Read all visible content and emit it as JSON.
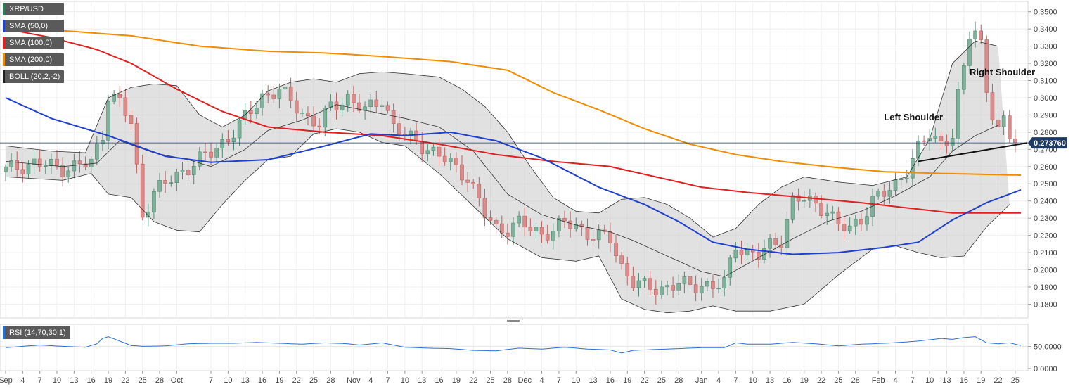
{
  "chart_data": {
    "type": "candlestick",
    "symbol": "XRP/USD",
    "indicators": [
      {
        "key": "pair",
        "label": "XRP/USD",
        "color": "#2e7d5b"
      },
      {
        "key": "sma50",
        "label": "SMA (50,0)",
        "color": "#1f3fcf"
      },
      {
        "key": "sma100",
        "label": "SMA (100,0)",
        "color": "#e02020"
      },
      {
        "key": "sma200",
        "label": "SMA (200,0)",
        "color": "#f08c00"
      },
      {
        "key": "boll",
        "label": "BOLL (20,2,-2)",
        "color": "#222222"
      }
    ],
    "y_range": [
      0.172,
      0.356
    ],
    "y_ticks": [
      "0.1800",
      "0.1900",
      "0.2000",
      "0.2100",
      "0.2200",
      "0.2300",
      "0.2400",
      "0.2500",
      "0.2600",
      "0.2700",
      "0.2800",
      "0.2900",
      "0.3000",
      "0.3100",
      "0.3200",
      "0.3300",
      "0.3400",
      "0.3500"
    ],
    "current_price": "0.273760",
    "current_price_value": 0.27376,
    "x_ticks": [
      {
        "i": 0,
        "label": "Sep"
      },
      {
        "i": 3,
        "label": "4"
      },
      {
        "i": 6,
        "label": "7"
      },
      {
        "i": 9,
        "label": "10"
      },
      {
        "i": 12,
        "label": "13"
      },
      {
        "i": 15,
        "label": "16"
      },
      {
        "i": 18,
        "label": "19"
      },
      {
        "i": 21,
        "label": "22"
      },
      {
        "i": 24,
        "label": "25"
      },
      {
        "i": 27,
        "label": "28"
      },
      {
        "i": 30,
        "label": "Oct"
      },
      {
        "i": 36,
        "label": "7"
      },
      {
        "i": 39,
        "label": "10"
      },
      {
        "i": 42,
        "label": "13"
      },
      {
        "i": 45,
        "label": "16"
      },
      {
        "i": 48,
        "label": "19"
      },
      {
        "i": 51,
        "label": "22"
      },
      {
        "i": 54,
        "label": "25"
      },
      {
        "i": 57,
        "label": "28"
      },
      {
        "i": 61,
        "label": "Nov"
      },
      {
        "i": 64,
        "label": "4"
      },
      {
        "i": 67,
        "label": "7"
      },
      {
        "i": 70,
        "label": "10"
      },
      {
        "i": 73,
        "label": "13"
      },
      {
        "i": 76,
        "label": "16"
      },
      {
        "i": 79,
        "label": "19"
      },
      {
        "i": 82,
        "label": "22"
      },
      {
        "i": 85,
        "label": "25"
      },
      {
        "i": 88,
        "label": "28"
      },
      {
        "i": 91,
        "label": "Dec"
      },
      {
        "i": 94,
        "label": "4"
      },
      {
        "i": 97,
        "label": "7"
      },
      {
        "i": 100,
        "label": "10"
      },
      {
        "i": 103,
        "label": "13"
      },
      {
        "i": 106,
        "label": "16"
      },
      {
        "i": 109,
        "label": "19"
      },
      {
        "i": 112,
        "label": "22"
      },
      {
        "i": 115,
        "label": "25"
      },
      {
        "i": 118,
        "label": "28"
      },
      {
        "i": 122,
        "label": "Jan"
      },
      {
        "i": 125,
        "label": "4"
      },
      {
        "i": 128,
        "label": "7"
      },
      {
        "i": 131,
        "label": "10"
      },
      {
        "i": 134,
        "label": "13"
      },
      {
        "i": 137,
        "label": "16"
      },
      {
        "i": 140,
        "label": "19"
      },
      {
        "i": 143,
        "label": "22"
      },
      {
        "i": 146,
        "label": "25"
      },
      {
        "i": 149,
        "label": "28"
      },
      {
        "i": 153,
        "label": "Feb"
      },
      {
        "i": 156,
        "label": "4"
      },
      {
        "i": 159,
        "label": "7"
      },
      {
        "i": 162,
        "label": "10"
      },
      {
        "i": 165,
        "label": "13"
      },
      {
        "i": 168,
        "label": "16"
      },
      {
        "i": 171,
        "label": "19"
      },
      {
        "i": 174,
        "label": "22"
      },
      {
        "i": 177,
        "label": "25"
      }
    ],
    "close_keypoints": [
      [
        0,
        0.258
      ],
      [
        5,
        0.262
      ],
      [
        10,
        0.259
      ],
      [
        15,
        0.262
      ],
      [
        17,
        0.279
      ],
      [
        18,
        0.302
      ],
      [
        20,
        0.297
      ],
      [
        22,
        0.285
      ],
      [
        24,
        0.232
      ],
      [
        26,
        0.245
      ],
      [
        28,
        0.25
      ],
      [
        30,
        0.255
      ],
      [
        33,
        0.262
      ],
      [
        36,
        0.268
      ],
      [
        38,
        0.274
      ],
      [
        40,
        0.28
      ],
      [
        42,
        0.288
      ],
      [
        45,
        0.301
      ],
      [
        48,
        0.304
      ],
      [
        51,
        0.295
      ],
      [
        53,
        0.288
      ],
      [
        55,
        0.284
      ],
      [
        57,
        0.295
      ],
      [
        60,
        0.3
      ],
      [
        63,
        0.292
      ],
      [
        66,
        0.3
      ],
      [
        68,
        0.283
      ],
      [
        70,
        0.278
      ],
      [
        72,
        0.275
      ],
      [
        75,
        0.268
      ],
      [
        78,
        0.262
      ],
      [
        81,
        0.254
      ],
      [
        84,
        0.232
      ],
      [
        86,
        0.224
      ],
      [
        88,
        0.224
      ],
      [
        90,
        0.227
      ],
      [
        92,
        0.224
      ],
      [
        94,
        0.221
      ],
      [
        96,
        0.223
      ],
      [
        98,
        0.227
      ],
      [
        100,
        0.226
      ],
      [
        102,
        0.221
      ],
      [
        104,
        0.219
      ],
      [
        106,
        0.218
      ],
      [
        108,
        0.202
      ],
      [
        110,
        0.193
      ],
      [
        112,
        0.19
      ],
      [
        114,
        0.189
      ],
      [
        116,
        0.19
      ],
      [
        118,
        0.192
      ],
      [
        120,
        0.19
      ],
      [
        122,
        0.192
      ],
      [
        124,
        0.19
      ],
      [
        126,
        0.192
      ],
      [
        128,
        0.215
      ],
      [
        130,
        0.21
      ],
      [
        132,
        0.208
      ],
      [
        134,
        0.214
      ],
      [
        136,
        0.218
      ],
      [
        138,
        0.24
      ],
      [
        140,
        0.241
      ],
      [
        142,
        0.238
      ],
      [
        144,
        0.235
      ],
      [
        146,
        0.225
      ],
      [
        148,
        0.224
      ],
      [
        150,
        0.23
      ],
      [
        152,
        0.24
      ],
      [
        154,
        0.244
      ],
      [
        156,
        0.25
      ],
      [
        158,
        0.258
      ],
      [
        160,
        0.27
      ],
      [
        162,
        0.279
      ],
      [
        164,
        0.274
      ],
      [
        166,
        0.278
      ],
      [
        167,
        0.3
      ],
      [
        168,
        0.316
      ],
      [
        169,
        0.337
      ],
      [
        170,
        0.34
      ],
      [
        171,
        0.332
      ],
      [
        172,
        0.305
      ],
      [
        173,
        0.29
      ],
      [
        174,
        0.28
      ],
      [
        175,
        0.285
      ],
      [
        176,
        0.278
      ],
      [
        177,
        0.2738
      ]
    ],
    "sma50": [
      [
        0,
        0.3
      ],
      [
        8,
        0.288
      ],
      [
        18,
        0.278
      ],
      [
        28,
        0.266
      ],
      [
        36,
        0.2625
      ],
      [
        46,
        0.264
      ],
      [
        56,
        0.272
      ],
      [
        64,
        0.279
      ],
      [
        70,
        0.278
      ],
      [
        78,
        0.28
      ],
      [
        86,
        0.275
      ],
      [
        94,
        0.265
      ],
      [
        104,
        0.248
      ],
      [
        112,
        0.238
      ],
      [
        118,
        0.228
      ],
      [
        124,
        0.216
      ],
      [
        130,
        0.212
      ],
      [
        138,
        0.209
      ],
      [
        146,
        0.21
      ],
      [
        154,
        0.213
      ],
      [
        160,
        0.216
      ],
      [
        166,
        0.229
      ],
      [
        172,
        0.239
      ],
      [
        178,
        0.2465
      ]
    ],
    "sma100": [
      [
        0,
        0.34
      ],
      [
        8,
        0.335
      ],
      [
        16,
        0.328
      ],
      [
        22,
        0.32
      ],
      [
        30,
        0.305
      ],
      [
        38,
        0.292
      ],
      [
        46,
        0.283
      ],
      [
        56,
        0.28
      ],
      [
        66,
        0.278
      ],
      [
        76,
        0.273
      ],
      [
        86,
        0.267
      ],
      [
        96,
        0.263
      ],
      [
        106,
        0.26
      ],
      [
        114,
        0.254
      ],
      [
        122,
        0.248
      ],
      [
        130,
        0.245
      ],
      [
        140,
        0.242
      ],
      [
        150,
        0.239
      ],
      [
        158,
        0.236
      ],
      [
        166,
        0.233
      ],
      [
        178,
        0.233
      ]
    ],
    "sma200": [
      [
        0,
        0.342
      ],
      [
        10,
        0.339
      ],
      [
        22,
        0.336
      ],
      [
        34,
        0.33
      ],
      [
        46,
        0.327
      ],
      [
        56,
        0.326
      ],
      [
        66,
        0.324
      ],
      [
        78,
        0.321
      ],
      [
        88,
        0.316
      ],
      [
        96,
        0.303
      ],
      [
        104,
        0.293
      ],
      [
        112,
        0.282
      ],
      [
        120,
        0.273
      ],
      [
        128,
        0.267
      ],
      [
        136,
        0.263
      ],
      [
        144,
        0.26
      ],
      [
        154,
        0.257
      ],
      [
        164,
        0.256
      ],
      [
        178,
        0.255
      ]
    ],
    "boll_upper": [
      [
        0,
        0.272
      ],
      [
        8,
        0.269
      ],
      [
        14,
        0.268
      ],
      [
        18,
        0.3
      ],
      [
        22,
        0.306
      ],
      [
        26,
        0.308
      ],
      [
        30,
        0.307
      ],
      [
        34,
        0.29
      ],
      [
        38,
        0.283
      ],
      [
        42,
        0.29
      ],
      [
        46,
        0.304
      ],
      [
        50,
        0.309
      ],
      [
        54,
        0.311
      ],
      [
        58,
        0.309
      ],
      [
        62,
        0.314
      ],
      [
        66,
        0.315
      ],
      [
        70,
        0.314
      ],
      [
        76,
        0.312
      ],
      [
        80,
        0.305
      ],
      [
        84,
        0.295
      ],
      [
        88,
        0.28
      ],
      [
        92,
        0.26
      ],
      [
        96,
        0.242
      ],
      [
        100,
        0.234
      ],
      [
        104,
        0.233
      ],
      [
        108,
        0.241
      ],
      [
        112,
        0.242
      ],
      [
        116,
        0.238
      ],
      [
        120,
        0.23
      ],
      [
        124,
        0.219
      ],
      [
        128,
        0.224
      ],
      [
        132,
        0.238
      ],
      [
        136,
        0.248
      ],
      [
        140,
        0.254
      ],
      [
        146,
        0.251
      ],
      [
        152,
        0.249
      ],
      [
        158,
        0.254
      ],
      [
        162,
        0.276
      ],
      [
        166,
        0.32
      ],
      [
        170,
        0.333
      ],
      [
        174,
        0.33
      ]
    ],
    "boll_mid": [
      [
        0,
        0.263
      ],
      [
        10,
        0.26
      ],
      [
        16,
        0.262
      ],
      [
        20,
        0.275
      ],
      [
        26,
        0.268
      ],
      [
        32,
        0.264
      ],
      [
        36,
        0.26
      ],
      [
        42,
        0.27
      ],
      [
        46,
        0.281
      ],
      [
        52,
        0.287
      ],
      [
        58,
        0.296
      ],
      [
        64,
        0.292
      ],
      [
        70,
        0.288
      ],
      [
        76,
        0.283
      ],
      [
        82,
        0.269
      ],
      [
        88,
        0.244
      ],
      [
        94,
        0.232
      ],
      [
        100,
        0.226
      ],
      [
        106,
        0.222
      ],
      [
        110,
        0.217
      ],
      [
        116,
        0.208
      ],
      [
        122,
        0.199
      ],
      [
        126,
        0.196
      ],
      [
        132,
        0.207
      ],
      [
        138,
        0.218
      ],
      [
        144,
        0.228
      ],
      [
        150,
        0.234
      ],
      [
        156,
        0.243
      ],
      [
        162,
        0.254
      ],
      [
        166,
        0.269
      ],
      [
        170,
        0.278
      ],
      [
        174,
        0.284
      ]
    ],
    "boll_lower": [
      [
        0,
        0.254
      ],
      [
        10,
        0.252
      ],
      [
        15,
        0.256
      ],
      [
        18,
        0.244
      ],
      [
        22,
        0.242
      ],
      [
        26,
        0.228
      ],
      [
        30,
        0.223
      ],
      [
        34,
        0.222
      ],
      [
        38,
        0.238
      ],
      [
        42,
        0.252
      ],
      [
        46,
        0.264
      ],
      [
        50,
        0.266
      ],
      [
        54,
        0.279
      ],
      [
        58,
        0.282
      ],
      [
        62,
        0.28
      ],
      [
        66,
        0.274
      ],
      [
        70,
        0.272
      ],
      [
        76,
        0.256
      ],
      [
        82,
        0.237
      ],
      [
        88,
        0.218
      ],
      [
        94,
        0.207
      ],
      [
        100,
        0.205
      ],
      [
        104,
        0.208
      ],
      [
        108,
        0.183
      ],
      [
        112,
        0.177
      ],
      [
        116,
        0.175
      ],
      [
        120,
        0.176
      ],
      [
        124,
        0.179
      ],
      [
        128,
        0.176
      ],
      [
        134,
        0.176
      ],
      [
        140,
        0.18
      ],
      [
        146,
        0.197
      ],
      [
        152,
        0.212
      ],
      [
        156,
        0.214
      ],
      [
        160,
        0.21
      ],
      [
        164,
        0.207
      ],
      [
        168,
        0.208
      ],
      [
        172,
        0.225
      ],
      [
        176,
        0.238
      ]
    ],
    "annotations": [
      {
        "key": "left_shoulder",
        "text": "Left Shoulder"
      },
      {
        "key": "right_shoulder",
        "text": "Right Shoulder"
      }
    ],
    "neckline": [
      [
        160,
        0.263
      ],
      [
        178,
        0.2737
      ]
    ],
    "rsi": {
      "label": "RSI (14,70,30,1)",
      "y_range": [
        -5,
        100
      ],
      "y_ticks": [
        "50.0000",
        "0.0000"
      ],
      "overbought": 70,
      "oversold": 30,
      "points": [
        [
          0,
          47
        ],
        [
          6,
          53
        ],
        [
          10,
          50
        ],
        [
          14,
          48
        ],
        [
          16,
          56
        ],
        [
          17,
          68
        ],
        [
          18,
          72
        ],
        [
          20,
          62
        ],
        [
          22,
          52
        ],
        [
          24,
          50
        ],
        [
          28,
          51
        ],
        [
          32,
          56
        ],
        [
          36,
          57
        ],
        [
          40,
          57
        ],
        [
          44,
          59
        ],
        [
          48,
          57
        ],
        [
          52,
          55
        ],
        [
          56,
          58
        ],
        [
          60,
          56
        ],
        [
          62,
          53
        ],
        [
          66,
          58
        ],
        [
          70,
          48
        ],
        [
          74,
          46
        ],
        [
          78,
          45
        ],
        [
          82,
          41
        ],
        [
          86,
          40
        ],
        [
          90,
          46
        ],
        [
          94,
          44
        ],
        [
          98,
          48
        ],
        [
          102,
          44
        ],
        [
          106,
          42
        ],
        [
          108,
          35
        ],
        [
          110,
          41
        ],
        [
          114,
          43
        ],
        [
          118,
          45
        ],
        [
          122,
          47
        ],
        [
          126,
          47
        ],
        [
          128,
          58
        ],
        [
          130,
          55
        ],
        [
          134,
          55
        ],
        [
          138,
          59
        ],
        [
          142,
          56
        ],
        [
          146,
          51
        ],
        [
          150,
          55
        ],
        [
          154,
          57
        ],
        [
          158,
          60
        ],
        [
          160,
          62
        ],
        [
          164,
          68
        ],
        [
          166,
          66
        ],
        [
          168,
          70
        ],
        [
          170,
          72
        ],
        [
          172,
          58
        ],
        [
          174,
          56
        ],
        [
          176,
          58
        ],
        [
          178,
          52
        ]
      ]
    },
    "colors": {
      "up": "#7fb09a",
      "down": "#d98c8c",
      "up_wick": "#4f8a72",
      "down_wick": "#c06060",
      "band_fill": "#c8c8c8",
      "overbought_fill": "#7cf07c",
      "oversold_fill": "#ff8a8a",
      "rsi_line": "#2a6fd6",
      "price_label_bg": "#1d3a66"
    }
  }
}
